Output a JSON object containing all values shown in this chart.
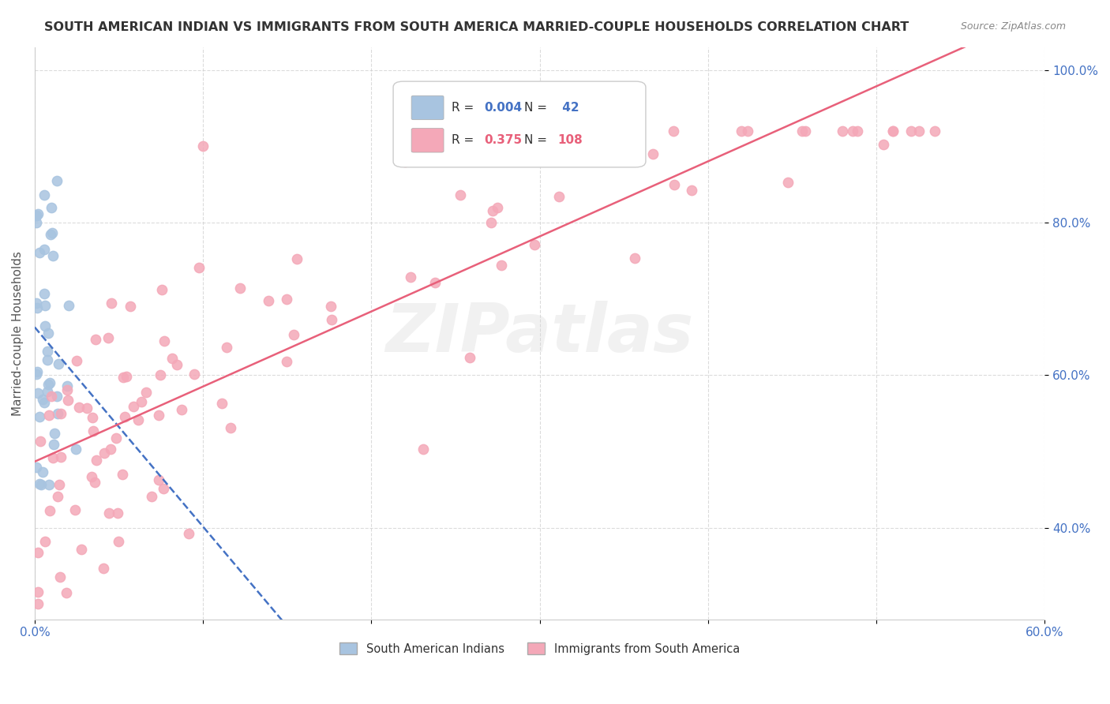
{
  "title": "SOUTH AMERICAN INDIAN VS IMMIGRANTS FROM SOUTH AMERICA MARRIED-COUPLE HOUSEHOLDS CORRELATION CHART",
  "source": "Source: ZipAtlas.com",
  "ylabel": "Married-couple Households",
  "xlim": [
    0.0,
    0.6
  ],
  "ylim": [
    0.28,
    1.03
  ],
  "xticks": [
    0.0,
    0.1,
    0.2,
    0.3,
    0.4,
    0.5,
    0.6
  ],
  "xticklabels": [
    "0.0%",
    "",
    "",
    "",
    "",
    "",
    "60.0%"
  ],
  "yticks": [
    0.4,
    0.6,
    0.8,
    1.0
  ],
  "yticklabels": [
    "40.0%",
    "60.0%",
    "80.0%",
    "100.0%"
  ],
  "blue_R": 0.004,
  "blue_N": 42,
  "pink_R": 0.375,
  "pink_N": 108,
  "blue_color": "#a8c4e0",
  "pink_color": "#f4a8b8",
  "blue_line_color": "#4472c4",
  "pink_line_color": "#e8607a",
  "bg_color": "#ffffff",
  "grid_color": "#cccccc",
  "tick_color": "#4472c4",
  "label_color": "#555555",
  "title_color": "#333333"
}
